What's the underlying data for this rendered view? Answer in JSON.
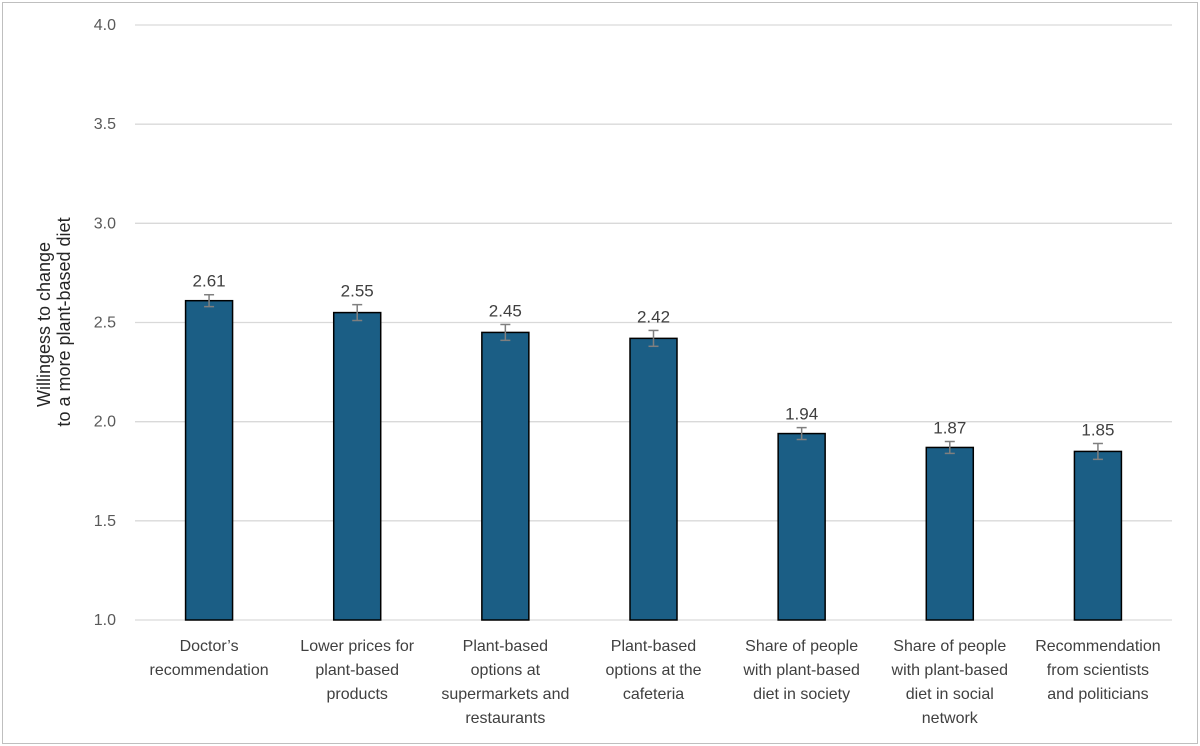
{
  "chart_data": {
    "type": "bar",
    "title": "",
    "xlabel": "",
    "ylabel_lines": [
      "Willingess to change",
      "to a more plant-based diet"
    ],
    "ylim": [
      1.0,
      4.0
    ],
    "yticks": [
      "1.0",
      "1.5",
      "2.0",
      "2.5",
      "3.0",
      "3.5",
      "4.0"
    ],
    "grid": true,
    "legend": "none",
    "bar_color": "#1b5e85",
    "bar_edge_color": "#000000",
    "errorbar_color": "#7f7f7f",
    "gridline_color": "#d9d9d9",
    "categories": [
      [
        "Doctor’s",
        "recommendation"
      ],
      [
        "Lower prices for",
        "plant-based",
        "products"
      ],
      [
        "Plant-based",
        "options at",
        "supermarkets and",
        "restaurants"
      ],
      [
        "Plant-based",
        "options at the",
        "cafeteria"
      ],
      [
        "Share of people",
        "with plant-based",
        "diet in society"
      ],
      [
        "Share of people",
        "with plant-based",
        "diet in social",
        "network"
      ],
      [
        "Recommendation",
        "from scientists",
        "and politicians"
      ]
    ],
    "values": [
      2.61,
      2.55,
      2.45,
      2.42,
      1.94,
      1.87,
      1.85
    ],
    "value_labels": [
      "2.61",
      "2.55",
      "2.45",
      "2.42",
      "1.94",
      "1.87",
      "1.85"
    ],
    "error": [
      0.03,
      0.04,
      0.04,
      0.04,
      0.03,
      0.03,
      0.04
    ]
  }
}
